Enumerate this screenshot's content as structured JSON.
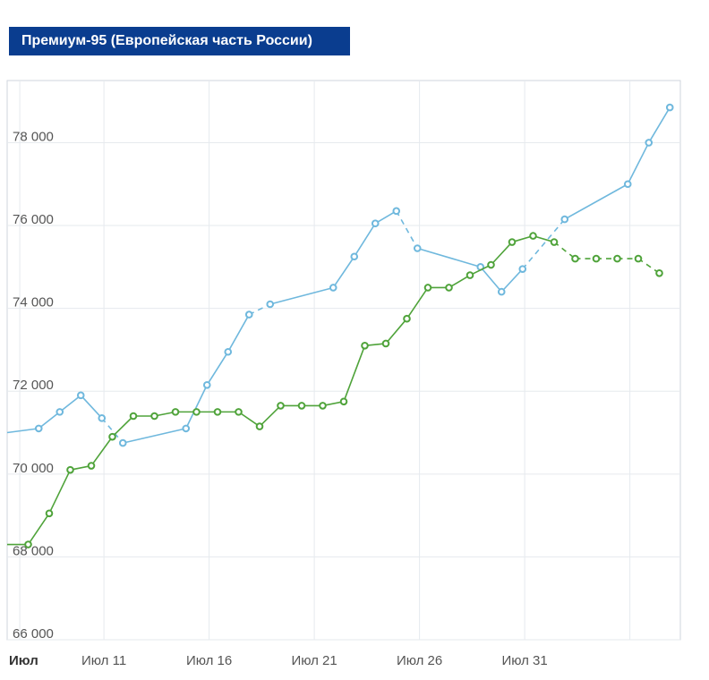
{
  "chart_data": {
    "type": "line",
    "title": "Премиум-95 (Европейская часть России)",
    "ylim": [
      66000,
      79500
    ],
    "yticks": [
      66000,
      68000,
      70000,
      72000,
      74000,
      76000,
      78000
    ],
    "ytick_labels": [
      "66 000",
      "68 000",
      "70 000",
      "72 000",
      "74 000",
      "76 000",
      "78 000"
    ],
    "xlim": [
      6.4,
      38.4
    ],
    "xticks": [
      7,
      11,
      16,
      21,
      26,
      31,
      36
    ],
    "xtick_labels": [
      "Июл",
      "Июл 11",
      "Июл 16",
      "Июл 21",
      "Июл 26",
      "Июл 31",
      ""
    ],
    "grid": true,
    "series": [
      {
        "color": "#6fb8dd",
        "points": [
          [
            6.4,
            71000
          ],
          [
            7.9,
            71100
          ],
          [
            8.9,
            71500
          ],
          [
            9.9,
            71900
          ],
          [
            10.9,
            71350
          ],
          [
            11.9,
            70750
          ],
          [
            14.9,
            71100
          ],
          [
            15.9,
            72150
          ],
          [
            16.9,
            72950
          ],
          [
            17.9,
            73850
          ],
          [
            18.9,
            74100
          ],
          [
            21.9,
            74500
          ],
          [
            22.9,
            75250
          ],
          [
            23.9,
            76050
          ],
          [
            24.9,
            76350
          ],
          [
            25.9,
            75450
          ],
          [
            28.9,
            75000
          ],
          [
            29.9,
            74400
          ],
          [
            30.9,
            74950
          ],
          [
            32.9,
            76150
          ],
          [
            35.9,
            77000
          ],
          [
            36.9,
            78000
          ],
          [
            37.9,
            78850
          ]
        ],
        "dashed_segments": [
          [
            4,
            5
          ],
          [
            9,
            10
          ],
          [
            14,
            15
          ],
          [
            18,
            19
          ]
        ]
      },
      {
        "color": "#4fa33a",
        "points": [
          [
            6.4,
            68300
          ],
          [
            7.4,
            68300
          ],
          [
            8.4,
            69050
          ],
          [
            9.4,
            70100
          ],
          [
            10.4,
            70200
          ],
          [
            11.4,
            70900
          ],
          [
            12.4,
            71400
          ],
          [
            13.4,
            71400
          ],
          [
            14.4,
            71500
          ],
          [
            15.4,
            71500
          ],
          [
            16.4,
            71500
          ],
          [
            17.4,
            71500
          ],
          [
            18.4,
            71150
          ],
          [
            19.4,
            71650
          ],
          [
            20.4,
            71650
          ],
          [
            21.4,
            71650
          ],
          [
            22.4,
            71750
          ],
          [
            23.4,
            73100
          ],
          [
            24.4,
            73150
          ],
          [
            25.4,
            73750
          ],
          [
            26.4,
            74500
          ],
          [
            27.4,
            74500
          ],
          [
            28.4,
            74800
          ],
          [
            29.4,
            75050
          ],
          [
            30.4,
            75600
          ],
          [
            31.4,
            75750
          ],
          [
            32.4,
            75600
          ],
          [
            33.4,
            75200
          ],
          [
            34.4,
            75200
          ],
          [
            35.4,
            75200
          ],
          [
            36.4,
            75200
          ],
          [
            37.4,
            74850
          ]
        ],
        "dashed_segments": [
          [
            26,
            27
          ],
          [
            27,
            28
          ],
          [
            28,
            29
          ],
          [
            29,
            30
          ],
          [
            30,
            31
          ]
        ]
      }
    ]
  }
}
